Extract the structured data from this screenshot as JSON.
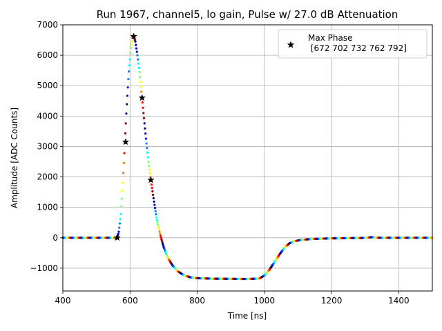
{
  "chart_data": {
    "type": "scatter",
    "title": "Run 1967, channel5, lo gain, Pulse w/ 27.0 dB Attenuation",
    "xlabel": "Time [ns]",
    "ylabel": "Amplitude [ADC Counts]",
    "xlim": [
      400,
      1500
    ],
    "ylim": [
      -1750,
      7000
    ],
    "xticks": [
      400,
      600,
      800,
      1000,
      1200,
      1400
    ],
    "yticks": [
      -1000,
      0,
      1000,
      2000,
      3000,
      4000,
      5000,
      6000,
      7000
    ],
    "ytick_labels": [
      "−1000",
      "0",
      "1000",
      "2000",
      "3000",
      "4000",
      "5000",
      "6000",
      "7000"
    ],
    "grid": true,
    "legend": {
      "placement": "top-right",
      "entries": [
        {
          "label": "Max Phase\n [672 702 732 762 792]",
          "marker": "star",
          "color": "#000000"
        }
      ]
    },
    "waveform_profile": [
      [
        400,
        0
      ],
      [
        560,
        0
      ],
      [
        566,
        150
      ],
      [
        572,
        700
      ],
      [
        578,
        1700
      ],
      [
        584,
        3000
      ],
      [
        590,
        4300
      ],
      [
        596,
        5400
      ],
      [
        602,
        6200
      ],
      [
        607,
        6580
      ],
      [
        611,
        6620
      ],
      [
        616,
        6450
      ],
      [
        622,
        6000
      ],
      [
        628,
        5450
      ],
      [
        634,
        4800
      ],
      [
        640,
        4100
      ],
      [
        648,
        3200
      ],
      [
        656,
        2400
      ],
      [
        664,
        1750
      ],
      [
        672,
        1150
      ],
      [
        680,
        600
      ],
      [
        690,
        100
      ],
      [
        700,
        -300
      ],
      [
        712,
        -650
      ],
      [
        726,
        -900
      ],
      [
        742,
        -1100
      ],
      [
        760,
        -1230
      ],
      [
        780,
        -1300
      ],
      [
        800,
        -1330
      ],
      [
        850,
        -1345
      ],
      [
        900,
        -1350
      ],
      [
        950,
        -1355
      ],
      [
        985,
        -1340
      ],
      [
        1000,
        -1240
      ],
      [
        1015,
        -1050
      ],
      [
        1030,
        -800
      ],
      [
        1045,
        -550
      ],
      [
        1060,
        -320
      ],
      [
        1075,
        -180
      ],
      [
        1090,
        -110
      ],
      [
        1110,
        -70
      ],
      [
        1140,
        -40
      ],
      [
        1200,
        -20
      ],
      [
        1300,
        -5
      ],
      [
        1320,
        20
      ],
      [
        1340,
        0
      ],
      [
        1400,
        0
      ],
      [
        1500,
        0
      ]
    ],
    "max_phase_markers": [
      {
        "x": 562,
        "y": 0
      },
      {
        "x": 587,
        "y": 3150
      },
      {
        "x": 611,
        "y": 6620
      },
      {
        "x": 636,
        "y": 4600
      },
      {
        "x": 662,
        "y": 1900
      }
    ],
    "colormap": [
      "#00007f",
      "#0000ff",
      "#007fff",
      "#00ffff",
      "#7fff7f",
      "#ffff00",
      "#ff7f00",
      "#ff0000",
      "#7f0000"
    ]
  }
}
